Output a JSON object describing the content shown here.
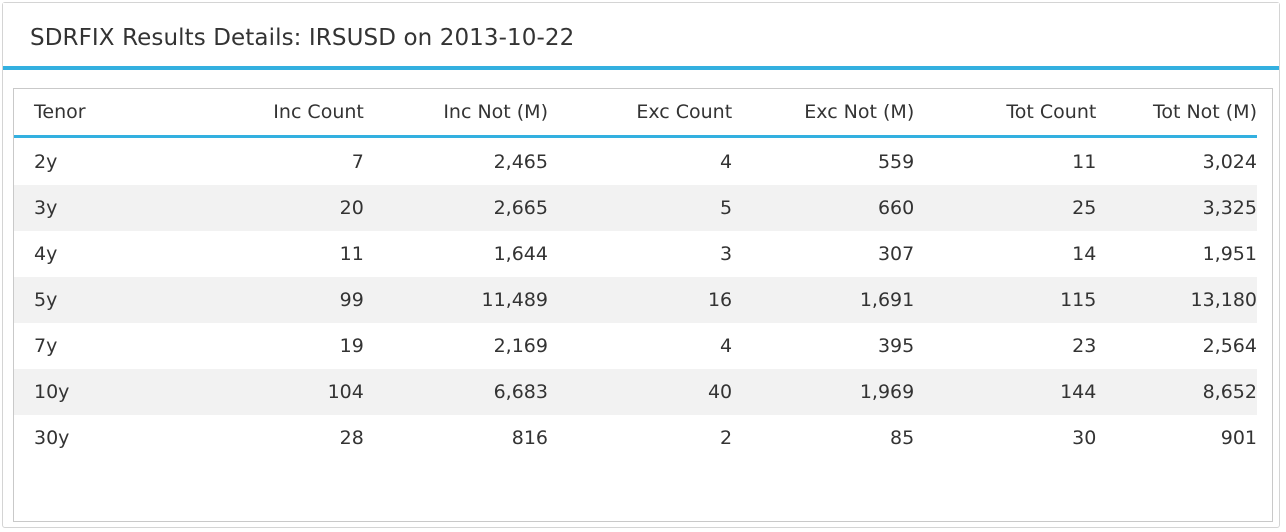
{
  "panel": {
    "title": "SDRFIX Results Details: IRSUSD on 2013-10-22"
  },
  "table": {
    "columns": [
      "Tenor",
      "Inc Count",
      "Inc Not (M)",
      "Exc Count",
      "Exc Not (M)",
      "Tot Count",
      "Tot Not (M)"
    ],
    "rows": [
      [
        "2y",
        "7",
        "2,465",
        "4",
        "559",
        "11",
        "3,024"
      ],
      [
        "3y",
        "20",
        "2,665",
        "5",
        "660",
        "25",
        "3,325"
      ],
      [
        "4y",
        "11",
        "1,644",
        "3",
        "307",
        "14",
        "1,951"
      ],
      [
        "5y",
        "99",
        "11,489",
        "16",
        "1,691",
        "115",
        "13,180"
      ],
      [
        "7y",
        "19",
        "2,169",
        "4",
        "395",
        "23",
        "2,564"
      ],
      [
        "10y",
        "104",
        "6,683",
        "40",
        "1,969",
        "144",
        "8,652"
      ],
      [
        "30y",
        "28",
        "816",
        "2",
        "85",
        "30",
        "901"
      ]
    ]
  },
  "colors": {
    "accent": "#33b0e0",
    "stripe": "#f2f2f2",
    "text": "#333333"
  }
}
